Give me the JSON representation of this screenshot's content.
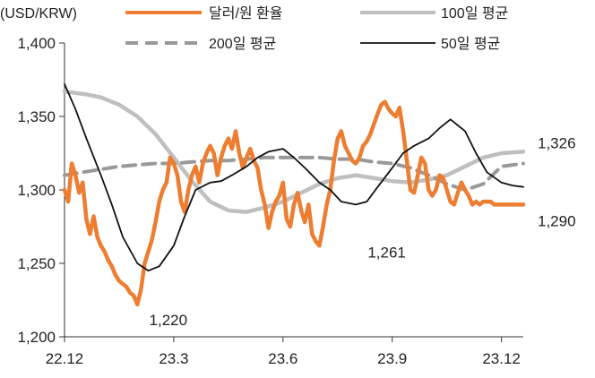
{
  "chart_data": {
    "type": "line",
    "unit_label": "(USD/KRW)",
    "ylim": [
      1200,
      1400
    ],
    "y_ticks": [
      "1,200",
      "1,250",
      "1,300",
      "1,350",
      "1,400"
    ],
    "y_tick_values": [
      1200,
      1250,
      1300,
      1350,
      1400
    ],
    "x_ticks": [
      "22.12",
      "23.3",
      "23.6",
      "23.9",
      "23.12"
    ],
    "x_tick_values": [
      0,
      3,
      6,
      9,
      12
    ],
    "xlim": [
      0,
      12.6
    ],
    "legend": {
      "placement": "top"
    },
    "series": [
      {
        "name": "달러/원 환율",
        "color": "#ED7D31",
        "style": "solid-thick",
        "x": [
          0,
          0.1,
          0.2,
          0.3,
          0.4,
          0.5,
          0.6,
          0.7,
          0.8,
          0.9,
          1.0,
          1.1,
          1.2,
          1.3,
          1.4,
          1.5,
          1.6,
          1.7,
          1.8,
          1.9,
          2.0,
          2.1,
          2.2,
          2.3,
          2.4,
          2.5,
          2.6,
          2.7,
          2.8,
          2.9,
          3.0,
          3.1,
          3.2,
          3.3,
          3.4,
          3.5,
          3.6,
          3.7,
          3.8,
          3.9,
          4.0,
          4.1,
          4.2,
          4.3,
          4.4,
          4.5,
          4.6,
          4.7,
          4.8,
          4.9,
          5.0,
          5.1,
          5.2,
          5.3,
          5.4,
          5.5,
          5.6,
          5.7,
          5.8,
          5.9,
          6.0,
          6.1,
          6.2,
          6.3,
          6.4,
          6.5,
          6.6,
          6.7,
          6.8,
          6.9,
          7.0,
          7.1,
          7.2,
          7.3,
          7.4,
          7.5,
          7.6,
          7.7,
          7.8,
          7.9,
          8.0,
          8.1,
          8.2,
          8.3,
          8.4,
          8.5,
          8.6,
          8.7,
          8.8,
          8.9,
          9.0,
          9.1,
          9.2,
          9.3,
          9.4,
          9.5,
          9.6,
          9.7,
          9.8,
          9.9,
          10.0,
          10.1,
          10.2,
          10.3,
          10.4,
          10.5,
          10.6,
          10.7,
          10.8,
          10.9,
          11.0,
          11.1,
          11.2,
          11.3,
          11.4,
          11.5,
          11.6,
          11.7,
          11.8,
          11.9,
          12.0,
          12.1,
          12.2,
          12.3,
          12.4,
          12.5,
          12.6
        ],
        "y": [
          1300,
          1292,
          1318,
          1310,
          1298,
          1305,
          1280,
          1270,
          1282,
          1268,
          1262,
          1258,
          1252,
          1248,
          1242,
          1238,
          1236,
          1234,
          1230,
          1228,
          1222,
          1232,
          1250,
          1258,
          1266,
          1278,
          1292,
          1300,
          1305,
          1322,
          1318,
          1310,
          1292,
          1285,
          1300,
          1310,
          1316,
          1305,
          1318,
          1325,
          1330,
          1325,
          1310,
          1322,
          1330,
          1335,
          1328,
          1340,
          1325,
          1315,
          1322,
          1328,
          1320,
          1315,
          1300,
          1290,
          1274,
          1285,
          1292,
          1296,
          1305,
          1280,
          1275,
          1290,
          1298,
          1286,
          1278,
          1290,
          1270,
          1265,
          1262,
          1275,
          1290,
          1300,
          1320,
          1335,
          1340,
          1330,
          1325,
          1320,
          1318,
          1322,
          1330,
          1333,
          1338,
          1345,
          1352,
          1358,
          1360,
          1355,
          1352,
          1350,
          1356,
          1340,
          1320,
          1300,
          1298,
          1310,
          1322,
          1318,
          1300,
          1296,
          1300,
          1310,
          1308,
          1300,
          1292,
          1290,
          1298,
          1305,
          1300,
          1296,
          1290,
          1292,
          1290,
          1292,
          1292,
          1292,
          1290,
          1290,
          1290,
          1290,
          1290,
          1290,
          1290,
          1290,
          1290
        ],
        "end_label": "1,290"
      },
      {
        "name": "100일 평균",
        "color": "#BFBFBF",
        "style": "solid-thick",
        "x": [
          0,
          0.3,
          0.6,
          1.0,
          1.5,
          2.0,
          2.5,
          3.0,
          3.5,
          4.0,
          4.5,
          5.0,
          5.5,
          6.0,
          6.5,
          7.0,
          7.5,
          8.0,
          8.5,
          9.0,
          9.5,
          10.0,
          10.5,
          11.0,
          11.5,
          12.0,
          12.6
        ],
        "y": [
          1367,
          1366,
          1365,
          1363,
          1358,
          1350,
          1338,
          1322,
          1306,
          1292,
          1286,
          1285,
          1288,
          1292,
          1298,
          1304,
          1308,
          1310,
          1308,
          1306,
          1305,
          1307,
          1310,
          1316,
          1322,
          1325,
          1326
        ],
        "end_label": "1,326"
      },
      {
        "name": "200일 평균",
        "color": "#999999",
        "style": "dashed-thick",
        "x": [
          0,
          0.5,
          1.0,
          1.5,
          2.0,
          2.5,
          3.0,
          3.5,
          4.0,
          4.5,
          5.0,
          5.5,
          6.0,
          6.5,
          7.0,
          7.5,
          8.0,
          8.5,
          9.0,
          9.5,
          10.0,
          10.5,
          11.0,
          11.5,
          12.0,
          12.6
        ],
        "y": [
          1310,
          1312,
          1314,
          1316,
          1317,
          1318,
          1318,
          1319,
          1320,
          1320,
          1321,
          1322,
          1322,
          1322,
          1322,
          1321,
          1321,
          1319,
          1318,
          1315,
          1310,
          1304,
          1300,
          1304,
          1316,
          1318
        ],
        "end_label": ""
      },
      {
        "name": "50일 평균",
        "color": "#111111",
        "style": "solid-thin",
        "x": [
          0,
          0.3,
          0.6,
          1.0,
          1.3,
          1.6,
          2.0,
          2.3,
          2.6,
          3.0,
          3.3,
          3.6,
          4.0,
          4.3,
          4.6,
          5.0,
          5.3,
          5.6,
          6.0,
          6.3,
          6.6,
          7.0,
          7.3,
          7.6,
          8.0,
          8.3,
          8.6,
          9.0,
          9.3,
          9.6,
          10.0,
          10.3,
          10.6,
          11.0,
          11.3,
          11.6,
          12.0,
          12.3,
          12.6
        ],
        "y": [
          1372,
          1355,
          1335,
          1310,
          1290,
          1268,
          1250,
          1245,
          1248,
          1262,
          1282,
          1300,
          1305,
          1306,
          1310,
          1316,
          1322,
          1326,
          1328,
          1322,
          1315,
          1305,
          1300,
          1292,
          1290,
          1292,
          1302,
          1315,
          1325,
          1330,
          1335,
          1342,
          1348,
          1340,
          1325,
          1312,
          1305,
          1303,
          1302
        ],
        "end_label": ""
      }
    ],
    "annotations": [
      {
        "text": "1,220",
        "x": 2.85,
        "y": 1208
      },
      {
        "text": "1,261",
        "x": 8.85,
        "y": 1254
      }
    ]
  }
}
